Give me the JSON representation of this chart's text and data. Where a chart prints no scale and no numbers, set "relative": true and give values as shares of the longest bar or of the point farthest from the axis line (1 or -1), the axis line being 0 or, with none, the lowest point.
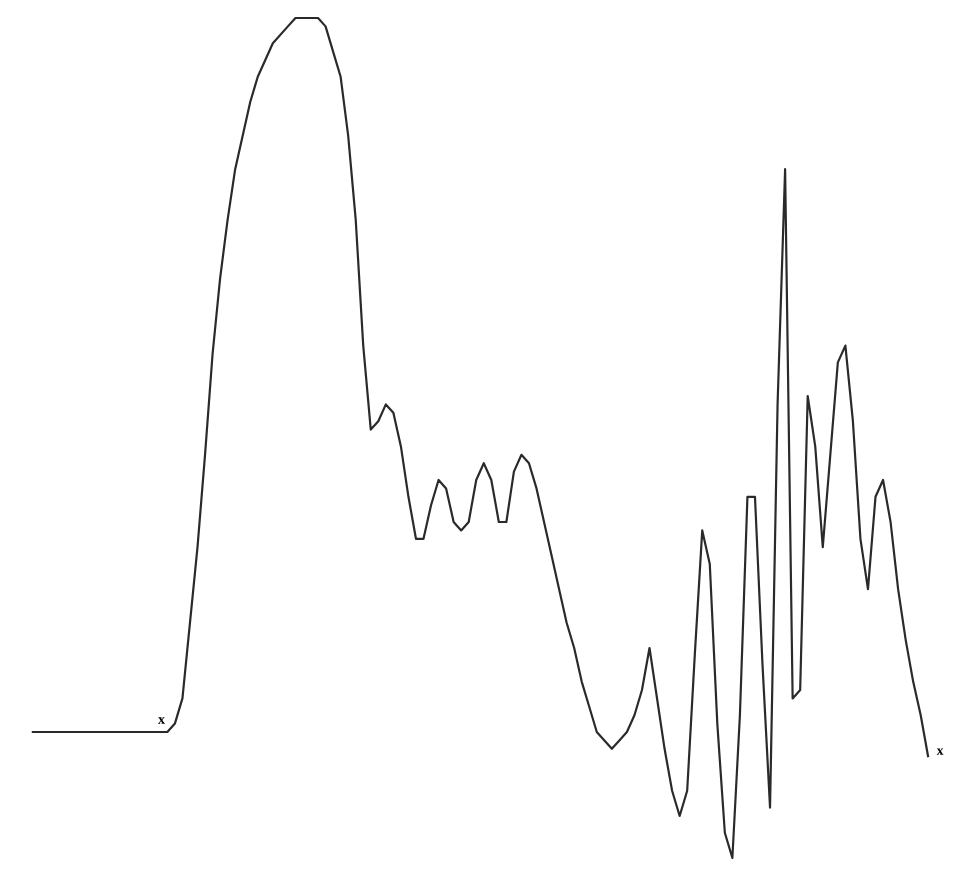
{
  "chart_data": {
    "type": "line",
    "relative": true,
    "marker": "none",
    "line_style": "solid",
    "categories": [
      null,
      null,
      null,
      null,
      null,
      null,
      null,
      null,
      null,
      null,
      null,
      null,
      null,
      null,
      null,
      null,
      null,
      null,
      null,
      null,
      null,
      null,
      null,
      null,
      null,
      null,
      null,
      null,
      null,
      null,
      null,
      null,
      null,
      null,
      null,
      null,
      null,
      null,
      null,
      null,
      null,
      null,
      null,
      null,
      null,
      null,
      null,
      null,
      null,
      null,
      null,
      null,
      null,
      null,
      null,
      null,
      null,
      null,
      null,
      null,
      null,
      null,
      null,
      null,
      null,
      null,
      null,
      null,
      null,
      null,
      null,
      null,
      null,
      null,
      null,
      null,
      null,
      null,
      null,
      null,
      null,
      null,
      null,
      null,
      null,
      null,
      null,
      null,
      null,
      null,
      null,
      null,
      null,
      null,
      null,
      null,
      null,
      null,
      null,
      null,
      null,
      null,
      null,
      null,
      null,
      null,
      null,
      null,
      null,
      null,
      null,
      null,
      null,
      null,
      null,
      null,
      null,
      null,
      null,
      null
    ],
    "series": [
      {
        "color": "#2a2a2a",
        "values": [
          0.15,
          0.15,
          0.15,
          0.15,
          0.15,
          0.15,
          0.15,
          0.15,
          0.15,
          0.15,
          0.15,
          0.15,
          0.15,
          0.15,
          0.15,
          0.15,
          0.15,
          0.15,
          0.15,
          0.16,
          0.19,
          0.28,
          0.37,
          0.48,
          0.6,
          0.69,
          0.76,
          0.82,
          0.86,
          0.9,
          0.93,
          0.95,
          0.97,
          0.98,
          0.99,
          1.0,
          1.0,
          1.0,
          1.0,
          0.99,
          0.96,
          0.93,
          0.86,
          0.76,
          0.61,
          0.51,
          0.52,
          0.54,
          0.53,
          0.49,
          0.43,
          0.38,
          0.38,
          0.42,
          0.45,
          0.44,
          0.4,
          0.39,
          0.4,
          0.45,
          0.47,
          0.45,
          0.4,
          0.4,
          0.46,
          0.48,
          0.47,
          0.44,
          0.4,
          0.36,
          0.32,
          0.28,
          0.25,
          0.21,
          0.18,
          0.15,
          0.14,
          0.13,
          0.14,
          0.15,
          0.17,
          0.2,
          0.25,
          0.19,
          0.13,
          0.08,
          0.05,
          0.08,
          0.24,
          0.39,
          0.35,
          0.16,
          0.03,
          0.0,
          0.17,
          0.43,
          0.43,
          0.23,
          0.06,
          0.54,
          0.82,
          0.19,
          0.2,
          0.55,
          0.49,
          0.37,
          0.48,
          0.59,
          0.61,
          0.52,
          0.38,
          0.32,
          0.43,
          0.45,
          0.4,
          0.32,
          0.26,
          0.21,
          0.17,
          0.12
        ]
      }
    ],
    "annotations": [
      "x",
      "x"
    ]
  }
}
